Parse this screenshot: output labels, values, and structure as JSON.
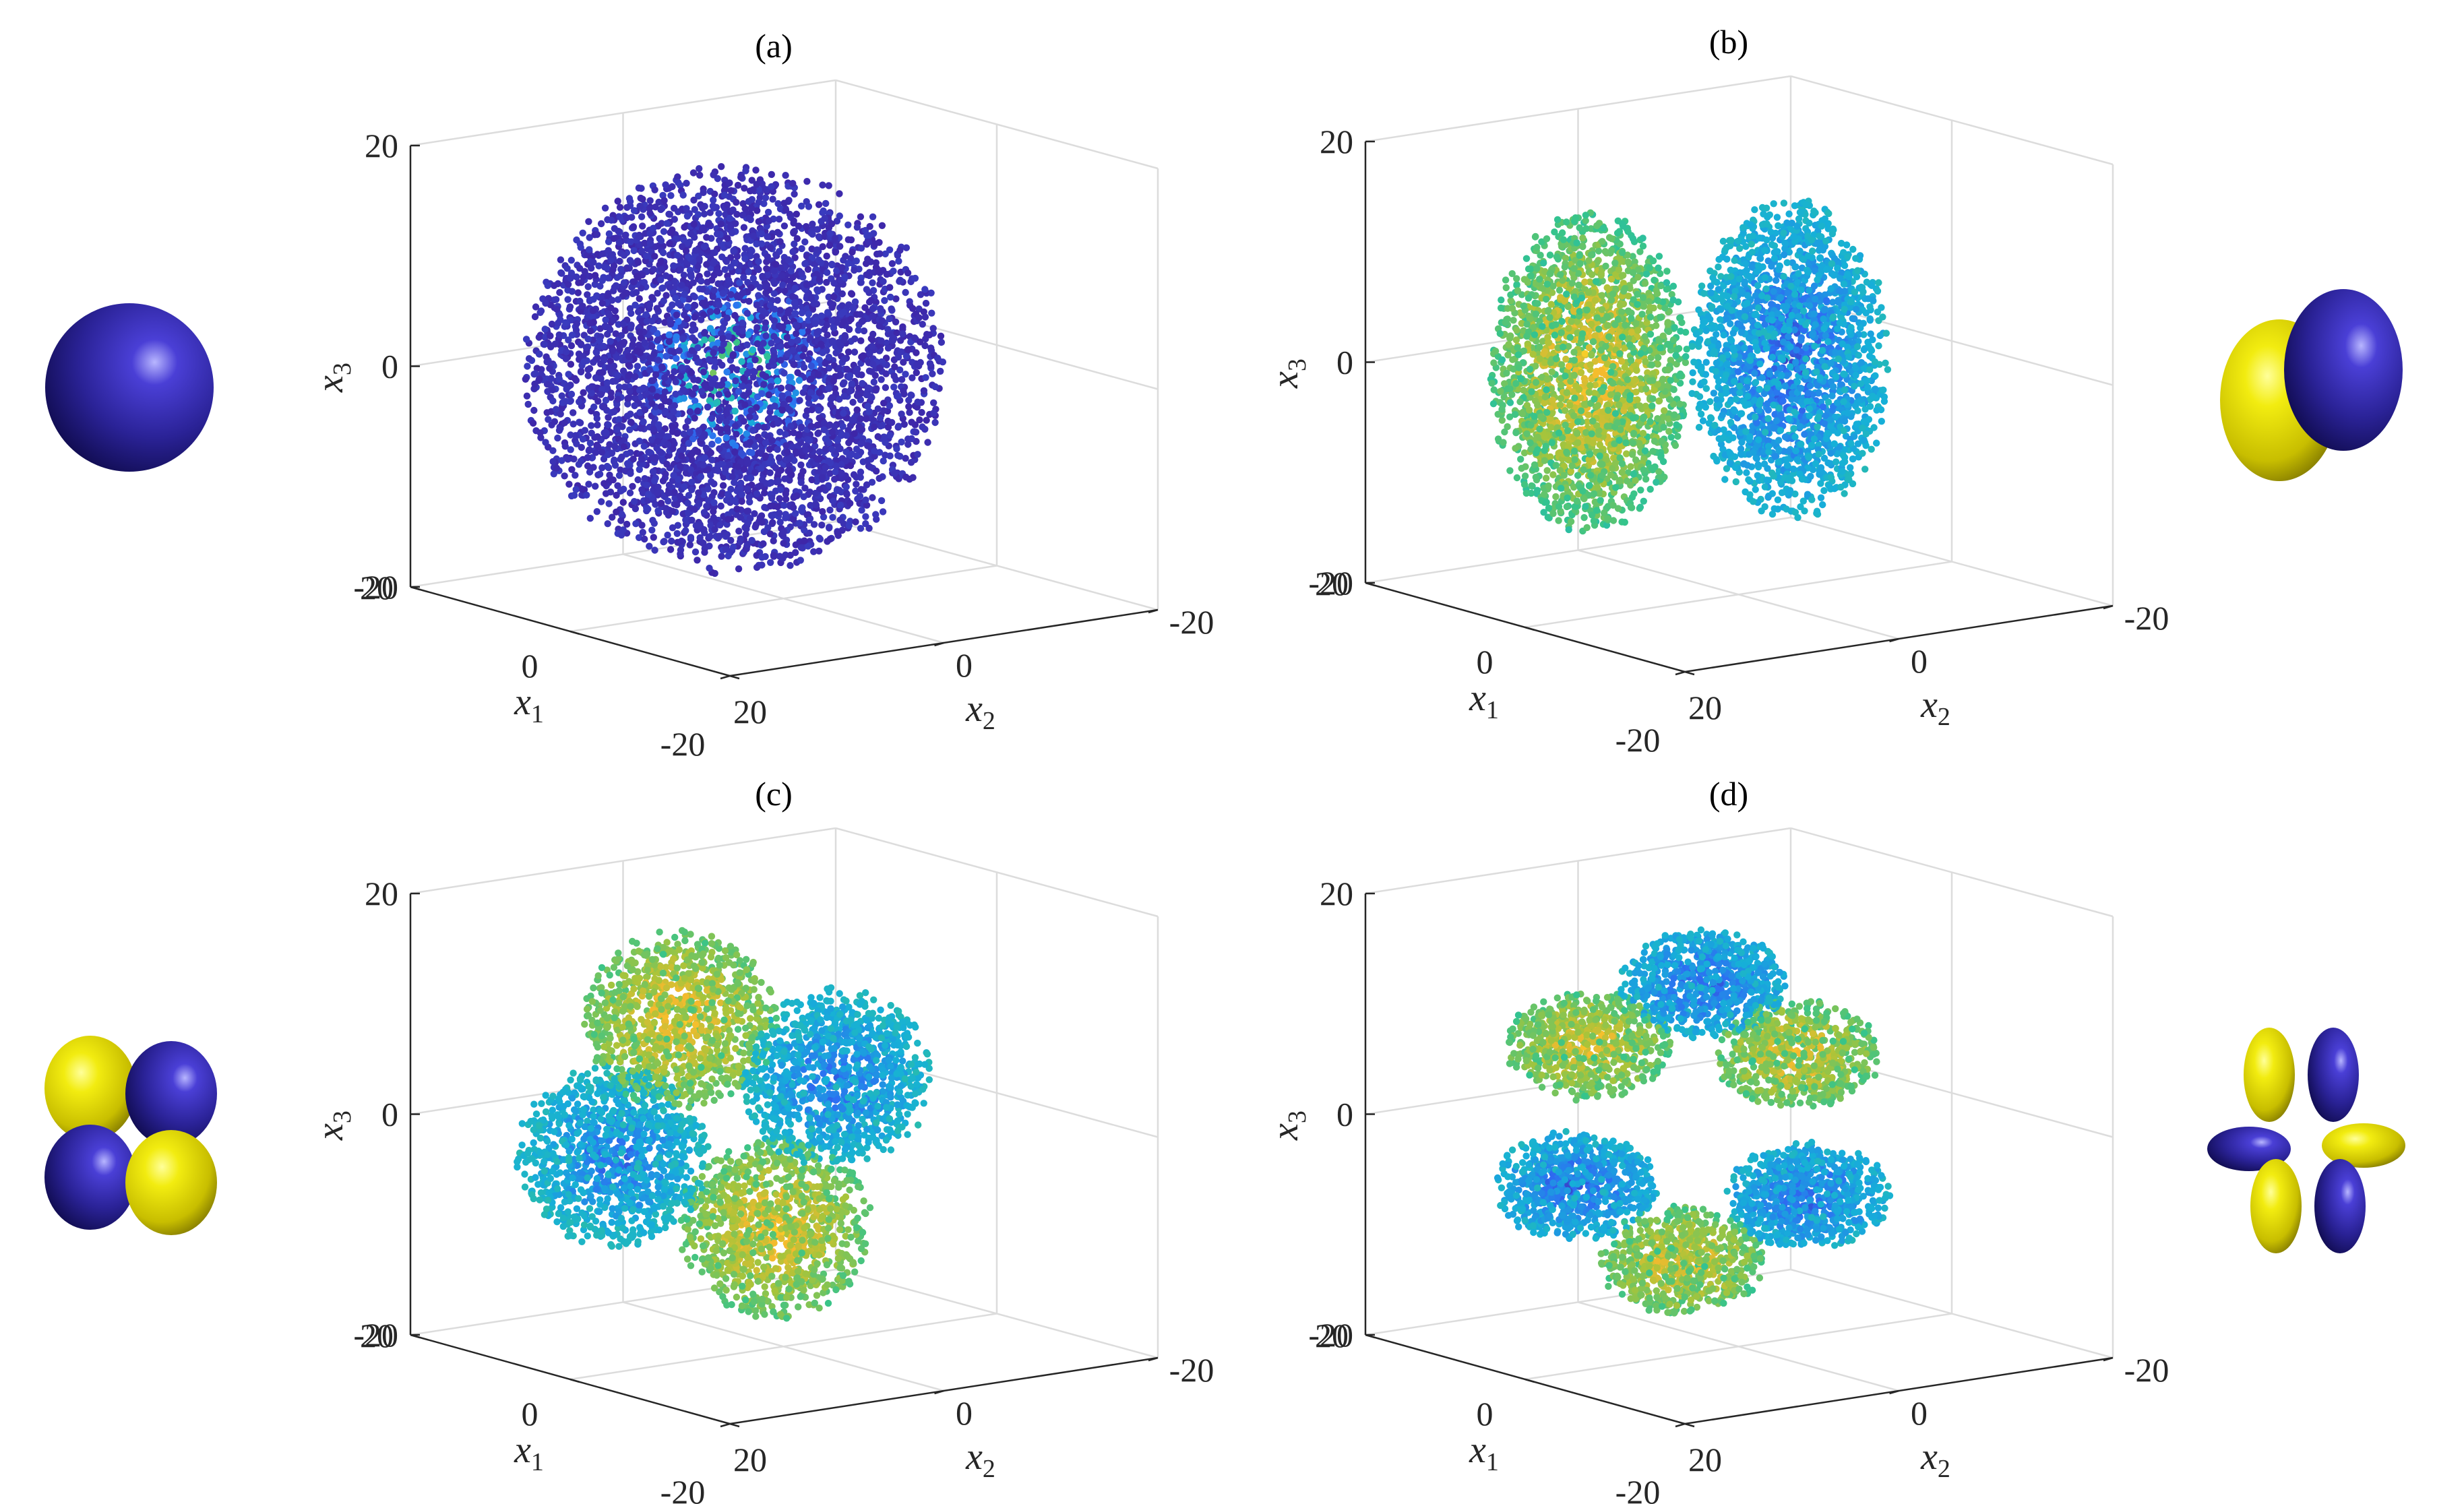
{
  "chart_data": [
    {
      "panel": "(a)",
      "type": "scatter",
      "title": "(a)",
      "pattern": "s",
      "xlabel": "x",
      "xlabel_sub": "1",
      "ylabel": "x",
      "ylabel_sub": "2",
      "zlabel": "x",
      "zlabel_sub": "3",
      "x1_range": [
        -20,
        20
      ],
      "x2_range": [
        -20,
        20
      ],
      "x3_range": [
        -20,
        20
      ],
      "x1_ticks": [
        "20",
        "0",
        "-20"
      ],
      "x2_ticks": [
        "20",
        "0",
        "-20"
      ],
      "x3_ticks": [
        "20",
        "0",
        "-20"
      ],
      "grid": true,
      "orbital_icon": "s-orbital-sphere",
      "orbital_side": "left"
    },
    {
      "panel": "(b)",
      "type": "scatter",
      "title": "(b)",
      "pattern": "p",
      "xlabel": "x",
      "xlabel_sub": "1",
      "ylabel": "x",
      "ylabel_sub": "2",
      "zlabel": "x",
      "zlabel_sub": "3",
      "x1_range": [
        -20,
        20
      ],
      "x2_range": [
        -20,
        20
      ],
      "x3_range": [
        -20,
        20
      ],
      "x1_ticks": [
        "20",
        "0",
        "-20"
      ],
      "x2_ticks": [
        "20",
        "0",
        "-20"
      ],
      "x3_ticks": [
        "20",
        "0",
        "-20"
      ],
      "grid": true,
      "orbital_icon": "p-orbital-two-lobes",
      "orbital_side": "right"
    },
    {
      "panel": "(c)",
      "type": "scatter",
      "title": "(c)",
      "pattern": "d",
      "xlabel": "x",
      "xlabel_sub": "1",
      "ylabel": "x",
      "ylabel_sub": "2",
      "zlabel": "x",
      "zlabel_sub": "3",
      "x1_range": [
        -20,
        20
      ],
      "x2_range": [
        -20,
        20
      ],
      "x3_range": [
        -20,
        20
      ],
      "x1_ticks": [
        "20",
        "0",
        "-20"
      ],
      "x2_ticks": [
        "20",
        "0",
        "-20"
      ],
      "x3_ticks": [
        "20",
        "0",
        "-20"
      ],
      "grid": true,
      "orbital_icon": "d-orbital-four-lobes",
      "orbital_side": "left"
    },
    {
      "panel": "(d)",
      "type": "scatter",
      "title": "(d)",
      "pattern": "f",
      "xlabel": "x",
      "xlabel_sub": "1",
      "ylabel": "x",
      "ylabel_sub": "2",
      "zlabel": "x",
      "zlabel_sub": "3",
      "x1_range": [
        -20,
        20
      ],
      "x2_range": [
        -20,
        20
      ],
      "x3_range": [
        -20,
        20
      ],
      "x1_ticks": [
        "20",
        "0",
        "-20"
      ],
      "x2_ticks": [
        "20",
        "0",
        "-20"
      ],
      "x3_ticks": [
        "20",
        "0",
        "-20"
      ],
      "grid": true,
      "orbital_icon": "f-orbital-six-lobes",
      "orbital_side": "right"
    }
  ],
  "colors": {
    "orbital_positive": "#1e1b8a",
    "orbital_negative": "#e8e000",
    "colormap": [
      "#3e26a8",
      "#2d6ef3",
      "#16b0d8",
      "#35c48c",
      "#a8c43a",
      "#f5ba2e",
      "#f9e022"
    ]
  }
}
